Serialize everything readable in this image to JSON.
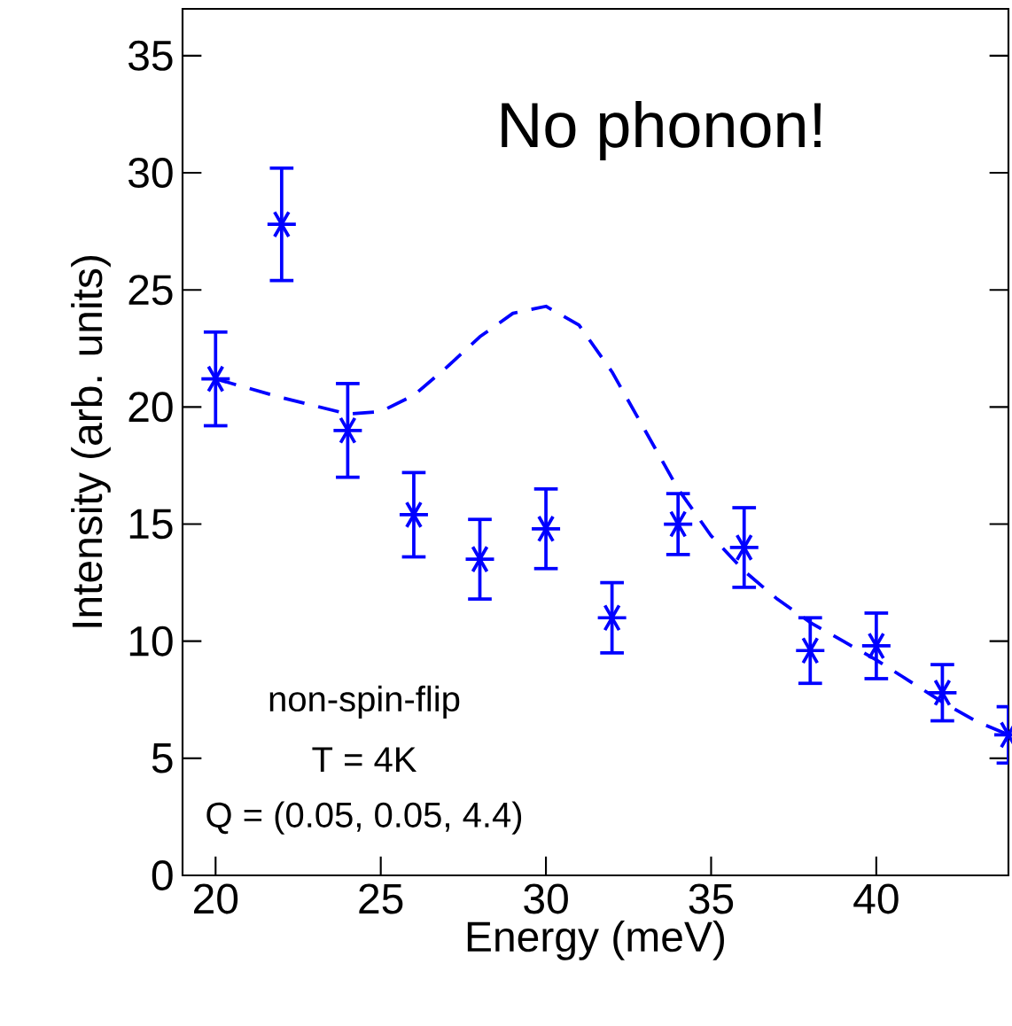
{
  "chart_data": {
    "type": "scatter",
    "xlabel": "Energy (meV)",
    "ylabel": "Intensity (arb. units)",
    "annotations": [
      "No phonon!",
      "non-spin-flip",
      "T = 4K",
      "Q = (0.05, 0.05, 4.4)"
    ],
    "xlim": [
      19,
      44
    ],
    "ylim": [
      0,
      37
    ],
    "xticks": [
      20,
      25,
      30,
      35,
      40
    ],
    "yticks": [
      0,
      5,
      10,
      15,
      20,
      25,
      30,
      35
    ],
    "grid": false,
    "series": [
      {
        "type": "scatter",
        "color": "#0000ff",
        "marker": "cross",
        "x": [
          20,
          22,
          24,
          26,
          28,
          30,
          32,
          34,
          36,
          38,
          40,
          42,
          44
        ],
        "values": [
          21.2,
          27.8,
          19.0,
          15.4,
          13.5,
          14.8,
          11.0,
          15.0,
          14.0,
          9.6,
          9.8,
          7.8,
          6.0
        ],
        "errors": [
          2.0,
          2.4,
          2.0,
          1.8,
          1.7,
          1.7,
          1.5,
          1.3,
          1.7,
          1.4,
          1.4,
          1.2,
          1.2
        ]
      },
      {
        "type": "line",
        "color": "#0000ff",
        "line_style": "dashed",
        "marker": "none",
        "x": [
          20,
          22,
          24,
          25,
          26,
          27,
          28,
          29,
          30,
          31,
          32,
          33,
          34,
          35,
          36,
          37,
          38,
          39,
          40,
          41,
          42,
          43,
          44
        ],
        "values": [
          21.2,
          20.4,
          19.7,
          19.8,
          20.5,
          21.7,
          23.0,
          24.0,
          24.3,
          23.5,
          21.5,
          19.0,
          16.5,
          14.5,
          13.0,
          11.8,
          10.8,
          10.0,
          9.2,
          8.3,
          7.4,
          6.6,
          6.0
        ]
      }
    ]
  }
}
